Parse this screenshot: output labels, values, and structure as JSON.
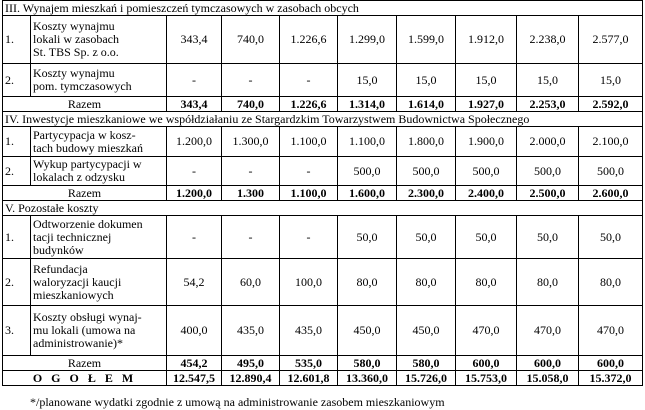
{
  "s3": {
    "title": "III. Wynajem mieszkań i pomieszczeń tymczasowych w zasobach obcych",
    "rows": [
      {
        "lp": "1.",
        "desc": [
          "Koszty wynajmu",
          "lokali w zasobach",
          "St. TBS Sp. z o.o."
        ],
        "vals": [
          "343,4",
          "740,0",
          "1.226,6",
          "1.299,0",
          "1.599,0",
          "1.912,0",
          "2.238,0",
          "2.577,0"
        ]
      },
      {
        "lp": "2.",
        "desc": [
          "Koszty wynajmu",
          "pom. tymczasowych"
        ],
        "vals": [
          "-",
          "-",
          "-",
          "15,0",
          "15,0",
          "15,0",
          "15,0",
          "15,0"
        ]
      }
    ],
    "total_label": "Razem",
    "totals": [
      "343,4",
      "740,0",
      "1.226,6",
      "1.314,0",
      "1.614,0",
      "1.927,0",
      "2.253,0",
      "2.592,0"
    ]
  },
  "s4": {
    "title": "IV. Inwestycje mieszkaniowe we współdziałaniu ze Stargardzkim Towarzystwem Budownictwa Społecznego",
    "rows": [
      {
        "lp": "1.",
        "desc": [
          "Partycypacja w kosz-",
          "tach budowy mieszkań"
        ],
        "vals": [
          "1.200,0",
          "1.300,0",
          "1.100,0",
          "1.100,0",
          "1.800,0",
          "1.900,0",
          "2.000,0",
          "2.100,0"
        ]
      },
      {
        "lp": "2.",
        "desc": [
          "Wykup partycypacji w",
          "lokalach z odzysku"
        ],
        "vals": [
          "-",
          "-",
          "-",
          "500,0",
          "500,0",
          "500,0",
          "500,0",
          "500,0"
        ]
      }
    ],
    "total_label": "Razem",
    "totals": [
      "1.200,0",
      "1.300",
      "1.100,0",
      "1.600,0",
      "2.300,0",
      "2.400,0",
      "2.500,0",
      "2.600,0"
    ]
  },
  "s5": {
    "title": "V. Pozostałe koszty",
    "rows": [
      {
        "lp": "1.",
        "desc": [
          "Odtworzenie dokumen",
          "tacji technicznej",
          "budynków"
        ],
        "vals": [
          "-",
          "-",
          "-",
          "50,0",
          "50,0",
          "50,0",
          "50,0",
          "50,0"
        ]
      },
      {
        "lp": "2.",
        "desc": [
          "Refundacja",
          "waloryzacji kaucji",
          "mieszkaniowych"
        ],
        "vals": [
          "54,2",
          "60,0",
          "100,0",
          "80,0",
          "80,0",
          "80,0",
          "80,0",
          "80,0"
        ]
      },
      {
        "lp": "3.",
        "desc": [
          "Koszty obsługi wynaj-",
          "mu lokali (umowa na",
          "administrowanie)*"
        ],
        "vals": [
          "400,0",
          "435,0",
          "435,0",
          "450,0",
          "450,0",
          "470,0",
          "470,0",
          "470,0"
        ]
      }
    ],
    "total_label": "Razem",
    "totals": [
      "454,2",
      "495,0",
      "535,0",
      "580,0",
      "580,0",
      "600,0",
      "600,0",
      "600,0"
    ]
  },
  "grand": {
    "label": "O G O Ł E M",
    "totals": [
      "12.547,5",
      "12.890,4",
      "12.601,8",
      "13.360,0",
      "15.726,0",
      "15.753,0",
      "15.058,0",
      "15.372,0"
    ]
  },
  "footnote": "*/planowane wydatki zgodnie z umową na administrowanie zasobem mieszkaniowym"
}
